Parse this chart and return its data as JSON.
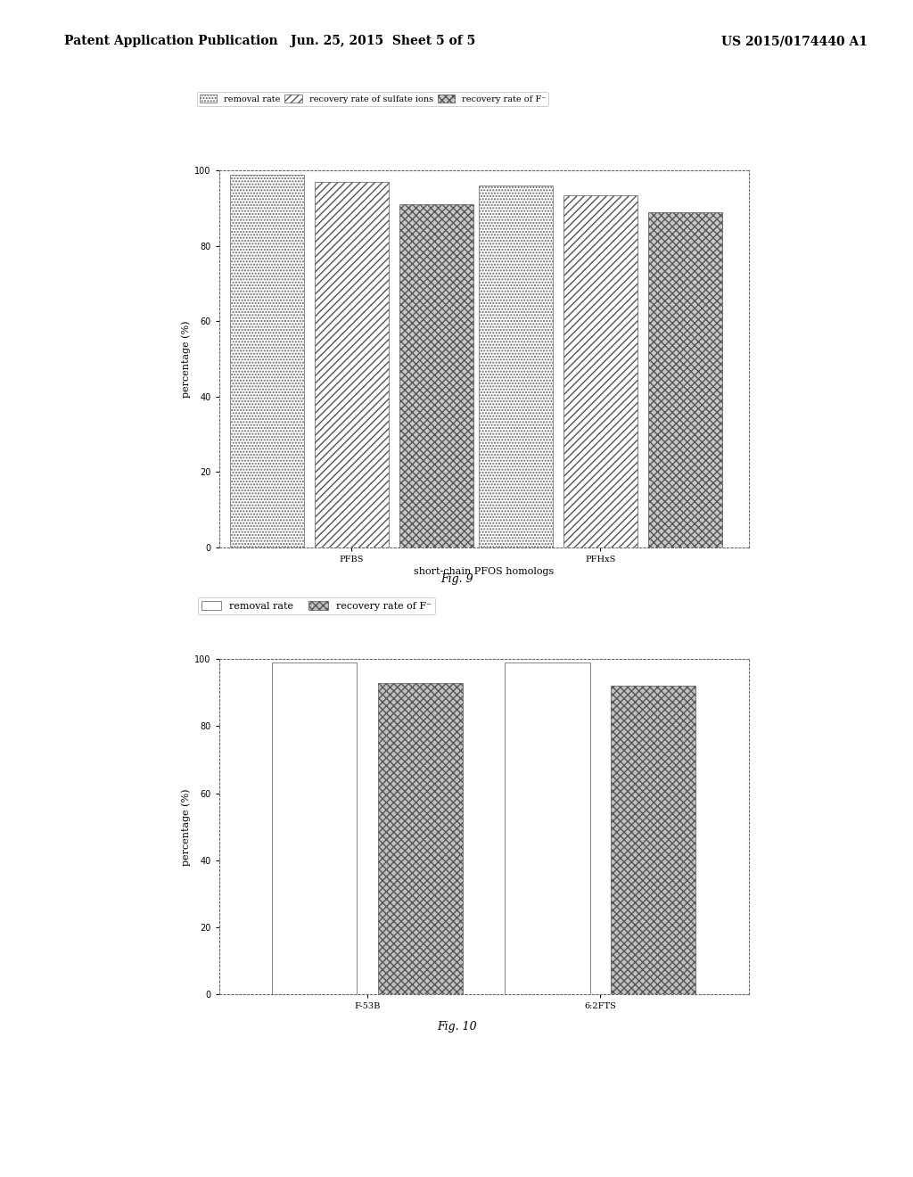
{
  "fig9": {
    "groups": [
      "PFBS",
      "PFHxS"
    ],
    "series": [
      "removal rate",
      "recovery rate of sulfate ions",
      "recovery rate of F⁻"
    ],
    "values": [
      [
        99.0,
        97.0,
        91.0
      ],
      [
        96.0,
        93.5,
        89.0
      ]
    ],
    "xlabel": "short-chain PFOS homologs",
    "ylabel": "percentage (%)",
    "ylim": [
      0,
      100
    ],
    "yticks": [
      0,
      20,
      40,
      60,
      80,
      100
    ],
    "figcaption": "Fig. 9"
  },
  "fig10": {
    "groups": [
      "F-53B",
      "6:2FTS"
    ],
    "series": [
      "removal rate",
      "recovery rate of F⁻"
    ],
    "values": [
      [
        99.0,
        93.0
      ],
      [
        99.0,
        92.0
      ]
    ],
    "ylabel": "percentage (%)",
    "ylim": [
      0,
      100
    ],
    "yticks": [
      0,
      20,
      40,
      60,
      80,
      100
    ],
    "figcaption": "Fig. 10"
  },
  "header_left": "Patent Application Publication",
  "header_mid": "Jun. 25, 2015  Sheet 5 of 5",
  "header_right": "US 2015/0174440 A1",
  "bg_color": "#ffffff",
  "text_color": "#000000"
}
